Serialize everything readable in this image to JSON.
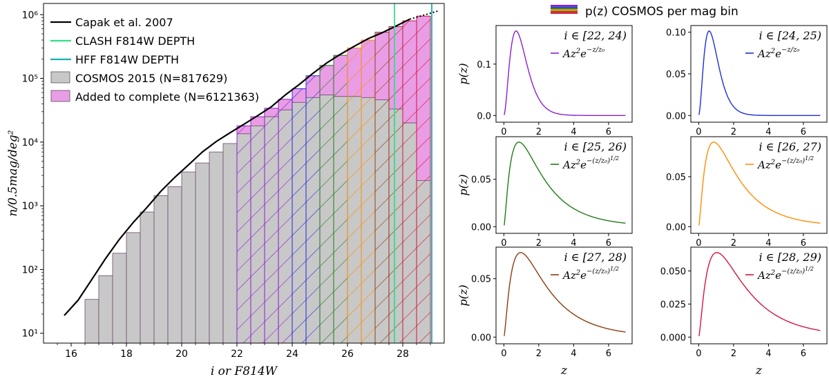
{
  "chart_data": [
    {
      "type": "bar",
      "yscale": "log",
      "xlabel": "i or F814W",
      "ylabel": "n/0.5mag/deg²",
      "xlim": [
        15,
        29.5
      ],
      "ylim": [
        7,
        1500000
      ],
      "xticks": [
        16,
        18,
        20,
        22,
        24,
        26,
        28
      ],
      "yticks": [
        10,
        100,
        1000,
        10000,
        100000,
        1000000
      ],
      "ytick_labels": [
        "10¹",
        "10²",
        "10³",
        "10⁴",
        "10⁵",
        "10⁶"
      ],
      "bin_width": 0.5,
      "bins_left": [
        16.5,
        17.0,
        17.5,
        18.0,
        18.5,
        19.0,
        19.5,
        20.0,
        20.5,
        21.0,
        21.5,
        22.0,
        22.5,
        23.0,
        23.5,
        24.0,
        24.5,
        25.0,
        25.5,
        26.0,
        26.5,
        27.0,
        27.5,
        28.0,
        28.5
      ],
      "series": [
        {
          "name": "COSMOS 2015 (N=817629)",
          "color": "#c8c8c8",
          "values": [
            34,
            80,
            180,
            380,
            800,
            1450,
            2000,
            3400,
            4700,
            7000,
            9500,
            13500,
            18000,
            25000,
            32000,
            42000,
            50000,
            55000,
            52000,
            52000,
            50000,
            46000,
            33000,
            20000,
            2500
          ]
        },
        {
          "name": "Added to complete (N=6121363)",
          "color": "#e99de5",
          "totals": [
            34,
            80,
            180,
            380,
            800,
            1450,
            2000,
            3400,
            4700,
            7000,
            9500,
            18000,
            25000,
            34000,
            47000,
            69000,
            110000,
            160000,
            230000,
            300000,
            400000,
            530000,
            650000,
            800000,
            950000
          ]
        }
      ],
      "hatch_bins": [
        {
          "range": [
            22,
            24
          ],
          "color": "#8b1cd3"
        },
        {
          "range": [
            24,
            25
          ],
          "color": "#1f2bd6"
        },
        {
          "range": [
            25,
            26
          ],
          "color": "#1d7c15"
        },
        {
          "range": [
            26,
            27
          ],
          "color": "#ff8c00"
        },
        {
          "range": [
            27,
            28
          ],
          "color": "#8b3a0f"
        },
        {
          "range": [
            28,
            29
          ],
          "color": "#d3143b"
        }
      ],
      "lines": [
        {
          "name": "Capak et al. 2007",
          "color": "#000000",
          "x": [
            15.75,
            16.25,
            16.75,
            17.25,
            17.75,
            18.25,
            18.75,
            19.25,
            19.75,
            20.25,
            20.75,
            21.25,
            21.75,
            22.25,
            22.75,
            23.25,
            23.75,
            24.25,
            24.75,
            25.25,
            25.75,
            26.25,
            26.75,
            27.25,
            27.75,
            28.25
          ],
          "y": [
            19,
            33,
            70,
            150,
            300,
            550,
            950,
            1700,
            2800,
            4400,
            7000,
            10200,
            14000,
            19000,
            26000,
            36000,
            55000,
            80000,
            120000,
            175000,
            240000,
            320000,
            420000,
            520000,
            660000,
            850000
          ],
          "extension": {
            "x": [
              28.25,
              28.75,
              29.3
            ],
            "y": [
              850000,
              980000,
              1150000
            ]
          }
        },
        {
          "name": "CLASH F814W DEPTH",
          "color": "#2fe08a",
          "x": 27.7
        },
        {
          "name": "HFF F814W DEPTH",
          "color": "#14b0b0",
          "x": 29.05
        }
      ],
      "legend": [
        {
          "label": "Capak et al. 2007",
          "kind": "line",
          "color": "#000000"
        },
        {
          "label": "CLASH F814W DEPTH",
          "kind": "line",
          "color": "#2fe08a"
        },
        {
          "label": "HFF F814W DEPTH",
          "kind": "line",
          "color": "#14b0b0"
        },
        {
          "label": "COSMOS 2015 (N=817629)",
          "kind": "patch",
          "color": "#c8c8c8"
        },
        {
          "label": "Added to complete (N=6121363)",
          "kind": "patch",
          "color": "#e99de5"
        }
      ],
      "legend_position": "upper-left",
      "grid": false
    },
    {
      "type": "line",
      "suptitle": "p(z) COSMOS per mag bin",
      "xlabel": "z",
      "ylabel": "p(z)",
      "xticks": [
        0,
        2,
        4,
        6
      ],
      "grid": false,
      "panels": [
        {
          "label": "i ∈ [22, 24)",
          "formula": "Az²e^{−z/z₀}",
          "model": "exp",
          "z0": 0.35,
          "color": "#8b1cd3",
          "ymax_axis": 0.175,
          "yticks": [
            0.0,
            0.1
          ],
          "ytick_labels": [
            "0.0",
            "0.1"
          ],
          "zmax": 7
        },
        {
          "label": "i ∈ [24, 25)",
          "formula": "Az²e^{−z/z₀}",
          "model": "exp",
          "z0": 0.3,
          "color": "#1f2bd6",
          "ymax_axis": 0.108,
          "yticks": [
            0.0,
            0.05,
            0.1
          ],
          "ytick_labels": [
            "0.00",
            "0.05",
            "0.10"
          ],
          "zmax": 7
        },
        {
          "label": "i ∈ [25, 26)",
          "formula": "Az²e^{−(z/z₀)^{1/2}}",
          "model": "sqrt",
          "z0": 0.054,
          "color": "#1d7c15",
          "ymax_axis": 0.095,
          "yticks": [
            0.0,
            0.05
          ],
          "ytick_labels": [
            "0.00",
            "0.05"
          ],
          "zmax": 7
        },
        {
          "label": "i ∈ [26, 27)",
          "formula": "Az²e^{−(z/z₀)^{1/2}}",
          "model": "sqrt",
          "z0": 0.054,
          "color": "#ff8c00",
          "ymax_axis": 0.09,
          "yticks": [
            0.0,
            0.05
          ],
          "ytick_labels": [
            "0.00",
            "0.05"
          ],
          "zmax": 7
        },
        {
          "label": "i ∈ [27, 28)",
          "formula": "Az²e^{−(z/z₀)^{1/2}}",
          "model": "sqrt",
          "z0": 0.06,
          "color": "#8b3a0f",
          "ymax_axis": 0.077,
          "yticks": [
            0.0,
            0.05
          ],
          "ytick_labels": [
            "0.00",
            "0.05"
          ],
          "zmax": 7
        },
        {
          "label": "i ∈ [28, 29)",
          "formula": "Az²e^{−(z/z₀)^{1/2}}",
          "model": "sqrt",
          "z0": 0.065,
          "color": "#d3143b",
          "ymax_axis": 0.068,
          "yticks": [
            0.0,
            0.025,
            0.05
          ],
          "ytick_labels": [
            "0.000",
            "0.025",
            "0.050"
          ],
          "zmax": 7
        }
      ]
    }
  ]
}
